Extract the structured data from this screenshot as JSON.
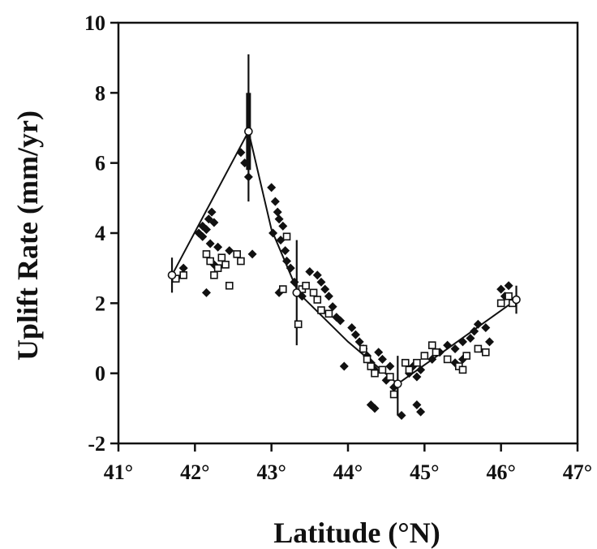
{
  "chart_data": {
    "type": "scatter",
    "title": "",
    "xlabel": "Latitude (°N)",
    "ylabel": "Uplift Rate (mm/yr)",
    "xlim": [
      41,
      47
    ],
    "ylim": [
      -2,
      10
    ],
    "x_ticks": [
      41,
      42,
      43,
      44,
      45,
      46,
      47
    ],
    "x_tick_labels": [
      "41°",
      "42°",
      "43°",
      "44°",
      "45°",
      "46°",
      "47°"
    ],
    "y_ticks": [
      -2,
      0,
      2,
      4,
      6,
      8,
      10
    ],
    "y_tick_labels": [
      "-2",
      "0",
      "2",
      "4",
      "6",
      "8",
      "10"
    ],
    "grid": false,
    "legend": "none",
    "model_line": {
      "x": [
        41.7,
        42.7,
        43.0,
        43.35,
        44.0,
        44.65,
        45.3,
        46.2
      ],
      "y": [
        2.8,
        6.9,
        4.1,
        2.3,
        0.9,
        -0.3,
        0.7,
        2.1
      ]
    },
    "error_bars": [
      {
        "x": 41.7,
        "y": 2.8,
        "low": 2.3,
        "high": 3.3
      },
      {
        "x": 42.7,
        "y": 6.9,
        "low": 4.9,
        "high": 9.1
      },
      {
        "x": 43.33,
        "y": 2.3,
        "low": 0.8,
        "high": 3.8
      },
      {
        "x": 44.65,
        "y": -0.3,
        "low": -1.2,
        "high": 0.5
      },
      {
        "x": 46.2,
        "y": 2.1,
        "low": 1.7,
        "high": 2.5
      }
    ],
    "series": [
      {
        "marker": "filled-diamond",
        "points": [
          [
            41.85,
            3.0
          ],
          [
            42.05,
            4.0
          ],
          [
            42.1,
            4.2
          ],
          [
            42.15,
            4.1
          ],
          [
            42.18,
            4.4
          ],
          [
            42.22,
            4.6
          ],
          [
            42.25,
            4.3
          ],
          [
            42.1,
            3.9
          ],
          [
            42.2,
            3.7
          ],
          [
            42.3,
            3.6
          ],
          [
            42.25,
            3.1
          ],
          [
            42.15,
            2.3
          ],
          [
            42.45,
            3.5
          ],
          [
            42.6,
            6.3
          ],
          [
            42.65,
            6.0
          ],
          [
            42.7,
            5.6
          ],
          [
            42.75,
            3.4
          ],
          [
            43.0,
            5.3
          ],
          [
            43.05,
            4.9
          ],
          [
            43.08,
            4.6
          ],
          [
            43.1,
            4.4
          ],
          [
            43.15,
            4.2
          ],
          [
            43.02,
            4.0
          ],
          [
            43.12,
            3.8
          ],
          [
            43.18,
            3.5
          ],
          [
            43.2,
            3.2
          ],
          [
            43.25,
            3.0
          ],
          [
            43.1,
            2.3
          ],
          [
            43.3,
            2.6
          ],
          [
            43.4,
            2.2
          ],
          [
            43.5,
            2.9
          ],
          [
            43.6,
            2.8
          ],
          [
            43.65,
            2.6
          ],
          [
            43.7,
            2.4
          ],
          [
            43.75,
            2.2
          ],
          [
            43.8,
            1.9
          ],
          [
            43.85,
            1.6
          ],
          [
            43.9,
            1.5
          ],
          [
            43.95,
            0.2
          ],
          [
            44.05,
            1.3
          ],
          [
            44.1,
            1.1
          ],
          [
            44.15,
            0.9
          ],
          [
            44.2,
            0.7
          ],
          [
            44.25,
            0.5
          ],
          [
            44.3,
            0.3
          ],
          [
            44.35,
            0.1
          ],
          [
            44.4,
            0.6
          ],
          [
            44.45,
            0.4
          ],
          [
            44.5,
            -0.2
          ],
          [
            44.55,
            0.2
          ],
          [
            44.6,
            -0.4
          ],
          [
            44.3,
            -0.9
          ],
          [
            44.35,
            -1.0
          ],
          [
            44.7,
            -1.2
          ],
          [
            44.8,
            0.0
          ],
          [
            44.85,
            0.2
          ],
          [
            44.9,
            -0.1
          ],
          [
            44.95,
            0.1
          ],
          [
            44.95,
            -1.1
          ],
          [
            44.9,
            -0.9
          ],
          [
            45.1,
            0.4
          ],
          [
            45.2,
            0.6
          ],
          [
            45.3,
            0.8
          ],
          [
            45.4,
            0.7
          ],
          [
            45.5,
            0.9
          ],
          [
            45.6,
            1.0
          ],
          [
            45.65,
            1.2
          ],
          [
            45.7,
            1.4
          ],
          [
            45.8,
            1.3
          ],
          [
            45.85,
            0.9
          ],
          [
            45.5,
            0.4
          ],
          [
            45.4,
            0.3
          ],
          [
            46.0,
            2.4
          ],
          [
            46.1,
            2.5
          ],
          [
            46.05,
            2.2
          ]
        ]
      },
      {
        "marker": "open-square",
        "points": [
          [
            41.75,
            2.7
          ],
          [
            41.85,
            2.8
          ],
          [
            42.15,
            3.4
          ],
          [
            42.2,
            3.2
          ],
          [
            42.25,
            2.8
          ],
          [
            42.3,
            3.0
          ],
          [
            42.35,
            3.3
          ],
          [
            42.4,
            3.1
          ],
          [
            42.45,
            2.5
          ],
          [
            42.55,
            3.4
          ],
          [
            42.6,
            3.2
          ],
          [
            43.15,
            2.4
          ],
          [
            43.2,
            3.9
          ],
          [
            43.35,
            1.4
          ],
          [
            43.4,
            2.4
          ],
          [
            43.45,
            2.5
          ],
          [
            43.55,
            2.3
          ],
          [
            43.6,
            2.1
          ],
          [
            43.65,
            1.8
          ],
          [
            43.75,
            1.7
          ],
          [
            44.2,
            0.7
          ],
          [
            44.25,
            0.4
          ],
          [
            44.3,
            0.2
          ],
          [
            44.35,
            0.0
          ],
          [
            44.45,
            0.1
          ],
          [
            44.55,
            -0.1
          ],
          [
            44.6,
            -0.6
          ],
          [
            44.75,
            0.3
          ],
          [
            44.8,
            0.1
          ],
          [
            44.9,
            0.3
          ],
          [
            45.0,
            0.5
          ],
          [
            45.1,
            0.8
          ],
          [
            45.15,
            0.6
          ],
          [
            45.3,
            0.4
          ],
          [
            45.45,
            0.2
          ],
          [
            45.5,
            0.1
          ],
          [
            45.55,
            0.5
          ],
          [
            45.7,
            0.7
          ],
          [
            45.8,
            0.6
          ],
          [
            46.0,
            2.0
          ],
          [
            46.1,
            2.2
          ],
          [
            46.15,
            2.0
          ]
        ]
      }
    ]
  }
}
